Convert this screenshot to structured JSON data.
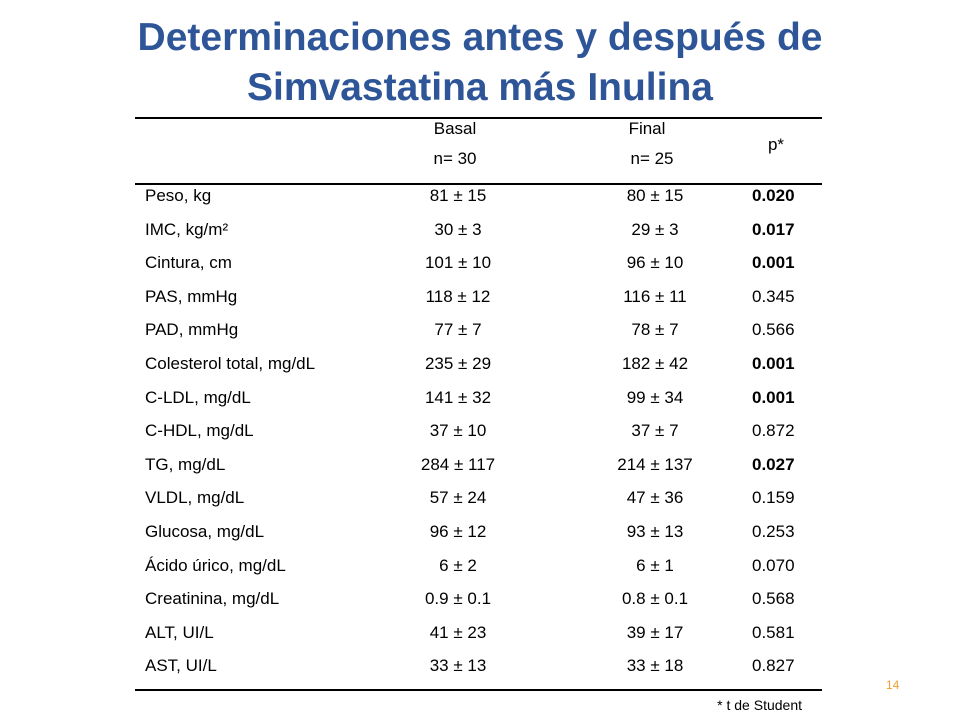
{
  "title": [
    "Determinaciones antes y después de",
    "Simvastatina más Inulina"
  ],
  "table": {
    "header": {
      "basal": "Basal",
      "basal_n": "n= 30",
      "final": "Final",
      "final_n": "n= 25",
      "p": "p*"
    },
    "rows": [
      {
        "label": "Peso, kg",
        "basal": "81 ± 15",
        "final": "80 ± 15",
        "p": "0.020",
        "p_bold": true
      },
      {
        "label": "IMC, kg/m²",
        "basal": "30 ± 3",
        "final": "29 ± 3",
        "p": "0.017",
        "p_bold": true
      },
      {
        "label": "Cintura, cm",
        "basal": "101 ± 10",
        "final": "96 ± 10",
        "p": "0.001",
        "p_bold": true
      },
      {
        "label": "PAS, mmHg",
        "basal": "118 ± 12",
        "final": "116 ± 11",
        "p": "0.345",
        "p_bold": false
      },
      {
        "label": "PAD, mmHg",
        "basal": "77 ± 7",
        "final": "78 ± 7",
        "p": "0.566",
        "p_bold": false
      },
      {
        "label": "Colesterol total, mg/dL",
        "basal": "235 ± 29",
        "final": "182 ± 42",
        "p": "0.001",
        "p_bold": true
      },
      {
        "label": "C-LDL, mg/dL",
        "basal": "141 ± 32",
        "final": "99 ± 34",
        "p": "0.001",
        "p_bold": true
      },
      {
        "label": "C-HDL, mg/dL",
        "basal": "37 ± 10",
        "final": "37 ± 7",
        "p": "0.872",
        "p_bold": false
      },
      {
        "label": "TG, mg/dL",
        "basal": "284 ± 117",
        "final": "214 ± 137",
        "p": "0.027",
        "p_bold": true
      },
      {
        "label": "VLDL, mg/dL",
        "basal": "57 ± 24",
        "final": "47 ± 36",
        "p": "0.159",
        "p_bold": false
      },
      {
        "label": "Glucosa, mg/dL",
        "basal": "96 ± 12",
        "final": "93 ± 13",
        "p": "0.253",
        "p_bold": false
      },
      {
        "label": "Ácido úrico, mg/dL",
        "basal": "6 ± 2",
        "final": "6 ± 1",
        "p": "0.070",
        "p_bold": false
      },
      {
        "label": "Creatinina, mg/dL",
        "basal": "0.9 ± 0.1",
        "final": "0.8 ± 0.1",
        "p": "0.568",
        "p_bold": false
      },
      {
        "label": "ALT, UI/L",
        "basal": "41 ± 23",
        "final": "39 ± 17",
        "p": "0.581",
        "p_bold": false
      },
      {
        "label": "AST, UI/L",
        "basal": "33 ± 13",
        "final": "33 ± 18",
        "p": "0.827",
        "p_bold": false
      }
    ]
  },
  "footnote": "* t de Student",
  "page_number": "14"
}
